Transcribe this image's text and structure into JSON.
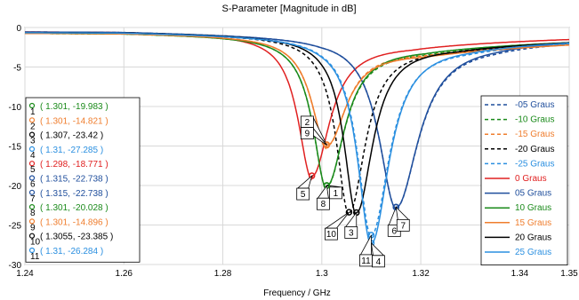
{
  "chart_data": {
    "type": "line",
    "title": "S-Parameter [Magnitude in dB]",
    "xlabel": "Frequency / GHz",
    "ylabel": "",
    "xlim": [
      1.24,
      1.35
    ],
    "ylim": [
      -30,
      0
    ],
    "x_ticks": [
      "1.24",
      "1.26",
      "1.28",
      "1.3",
      "1.32",
      "1.34",
      "1.35"
    ],
    "x_tick_values": [
      1.24,
      1.26,
      1.28,
      1.3,
      1.32,
      1.34,
      1.35
    ],
    "y_ticks": [
      "0",
      "-5",
      "-10",
      "-15",
      "-20",
      "-25",
      "-30"
    ],
    "y_tick_values": [
      0,
      -5,
      -10,
      -15,
      -20,
      -25,
      -30
    ],
    "grid": true,
    "legend_position": "right",
    "series": [
      {
        "name": "-05 Graus",
        "color": "#1f4e9c",
        "dashed": true,
        "min_x": 1.315,
        "min_y": -22.738,
        "width": 0.0075,
        "base": -0.5,
        "right_level": -2.0
      },
      {
        "name": "-10 Graus",
        "color": "#1a8a1a",
        "dashed": true,
        "min_x": 1.301,
        "min_y": -20.028,
        "width": 0.006,
        "base": -0.7,
        "right_level": -2.8
      },
      {
        "name": "-15 Graus",
        "color": "#ef7d2d",
        "dashed": true,
        "min_x": 1.301,
        "min_y": -14.896,
        "width": 0.0065,
        "base": -0.7,
        "right_level": -3.0
      },
      {
        "name": "-20 Graus",
        "color": "#000000",
        "dashed": true,
        "min_x": 1.3055,
        "min_y": -23.385,
        "width": 0.0055,
        "base": -0.6,
        "right_level": -2.6
      },
      {
        "name": "-25 Graus",
        "color": "#2a8fe0",
        "dashed": true,
        "min_x": 1.31,
        "min_y": -26.284,
        "width": 0.006,
        "base": -0.6,
        "right_level": -2.4
      },
      {
        "name": "0 Graus",
        "color": "#e02020",
        "dashed": false,
        "min_x": 1.298,
        "min_y": -18.771,
        "width": 0.006,
        "base": -0.5,
        "right_level": -2.2
      },
      {
        "name": "05 Graus",
        "color": "#1f4e9c",
        "dashed": false,
        "min_x": 1.315,
        "min_y": -22.738,
        "width": 0.0075,
        "base": -0.5,
        "right_level": -1.8
      },
      {
        "name": "10 Graus",
        "color": "#1a8a1a",
        "dashed": false,
        "min_x": 1.301,
        "min_y": -19.983,
        "width": 0.006,
        "base": -0.7,
        "right_level": -2.6
      },
      {
        "name": "15 Graus",
        "color": "#ef7d2d",
        "dashed": false,
        "min_x": 1.301,
        "min_y": -14.821,
        "width": 0.0065,
        "base": -0.7,
        "right_level": -3.2
      },
      {
        "name": "20 Graus",
        "color": "#000000",
        "dashed": false,
        "min_x": 1.307,
        "min_y": -23.42,
        "width": 0.0055,
        "base": -0.6,
        "right_level": -2.4
      },
      {
        "name": "25 Graus",
        "color": "#2a8fe0",
        "dashed": false,
        "min_x": 1.31,
        "min_y": -27.285,
        "width": 0.006,
        "base": -0.6,
        "right_level": -2.2
      }
    ],
    "markers": [
      {
        "id": "1",
        "label": "( 1.301, -19.983 )",
        "x": 1.301,
        "y": -19.983,
        "color": "#1a8a1a"
      },
      {
        "id": "2",
        "label": "( 1.301, -14.821 )",
        "x": 1.301,
        "y": -14.821,
        "color": "#ef7d2d"
      },
      {
        "id": "3",
        "label": "( 1.307, -23.42 )",
        "x": 1.307,
        "y": -23.42,
        "color": "#000000"
      },
      {
        "id": "4",
        "label": "( 1.31, -27.285 )",
        "x": 1.31,
        "y": -27.285,
        "color": "#2a8fe0"
      },
      {
        "id": "5",
        "label": "( 1.298, -18.771 )",
        "x": 1.298,
        "y": -18.771,
        "color": "#e02020"
      },
      {
        "id": "6",
        "label": "( 1.315, -22.738 )",
        "x": 1.315,
        "y": -22.738,
        "color": "#1f4e9c"
      },
      {
        "id": "7",
        "label": "( 1.315, -22.738 )",
        "x": 1.315,
        "y": -22.738,
        "color": "#1f4e9c"
      },
      {
        "id": "8",
        "label": "( 1.301, -20.028 )",
        "x": 1.301,
        "y": -20.028,
        "color": "#1a8a1a"
      },
      {
        "id": "9",
        "label": "( 1.301, -14.896 )",
        "x": 1.301,
        "y": -14.896,
        "color": "#ef7d2d"
      },
      {
        "id": "10",
        "label": "( 1.3055, -23.385 )",
        "x": 1.3055,
        "y": -23.385,
        "color": "#000000"
      },
      {
        "id": "11",
        "label": "( 1.31, -26.284 )",
        "x": 1.31,
        "y": -26.284,
        "color": "#2a8fe0"
      }
    ]
  }
}
